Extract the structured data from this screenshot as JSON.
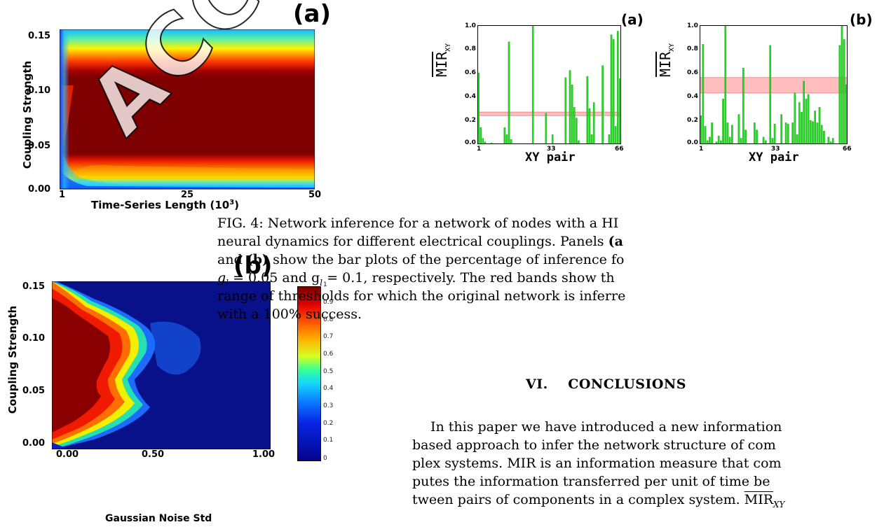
{
  "figure3": {
    "panel_a": {
      "letter": "(a)",
      "ylabel": "Coupling Strength",
      "xlabel": "Time-Series Length (10$^3$)",
      "xlabel_text": "Time-Series Length (10",
      "xlabel_sup": "3",
      "xlabel_tail": ")",
      "xticks": [
        "1",
        "25",
        "50"
      ],
      "yticks": [
        "0.00",
        "0.05",
        "0.10",
        "0.15"
      ]
    },
    "panel_b": {
      "letter": "(b)",
      "ylabel": "Coupling Strength",
      "xlabel": "Gaussian Noise Std",
      "xticks": [
        "0.00",
        "0.50",
        "1.00"
      ],
      "yticks": [
        "0.00",
        "0.05",
        "0.10",
        "0.15"
      ]
    },
    "colorbar": {
      "ticks": [
        "1",
        "0.9",
        "0.8",
        "0.7",
        "0.6",
        "0.5",
        "0.4",
        "0.3",
        "0.2",
        "0.1",
        "0"
      ]
    }
  },
  "figure4": {
    "panel_a": {
      "letter": "(a)",
      "ylabel": "MIR",
      "ylabel_sub": "XY",
      "xlabel": "XY pair",
      "xticks": [
        "1",
        "33",
        "66"
      ],
      "yticks": [
        "0.0",
        "0.2",
        "0.4",
        "0.6",
        "0.8",
        "1.0"
      ],
      "band": [
        0.24,
        0.27
      ]
    },
    "panel_b": {
      "letter": "(b)",
      "ylabel": "MIR",
      "ylabel_sub": "XY",
      "xlabel": "XY pair",
      "xticks": [
        "1",
        "33",
        "66"
      ],
      "yticks": [
        "0.0",
        "0.2",
        "0.4",
        "0.6",
        "0.8",
        "1.0"
      ],
      "band": [
        0.43,
        0.56
      ]
    },
    "caption_lines": [
      "FIG. 4: Network inference for a network of nodes with a HI",
      "neural dynamics for different electrical couplings. Panels (a",
      "and (b) show the bar plots of the percentage of inference fo",
      "g_l = 0.05 and g_l = 0.1, respectively. The red bands show th",
      "range of thresholds for which the original network is inferre",
      "with a 100% success."
    ],
    "caption": {
      "l1": "FIG. 4: Network inference for a network of nodes with a HI",
      "l2a": "neural dynamics for different electrical couplings. Panels ",
      "l2b": "(a",
      "l3a": "and ",
      "l3b": "(b)",
      "l3c": " show the bar plots of the percentage of inference fo",
      "l4": "= 0.05 and g",
      "l4b": "= 0.1, respectively. The red bands show th",
      "l5": "range of thresholds for which the original network is inferre",
      "l6": "with a 100% success."
    }
  },
  "section": {
    "number": "VI.",
    "title": "CONCLUSIONS"
  },
  "body": {
    "l1": "In this paper we have introduced a new information",
    "l2": "based approach to infer the network structure of com",
    "l3": "plex systems. MIR is an information measure that com",
    "l4": "putes the information transferred per unit of time be",
    "l5": "tween pairs of components in a complex system.",
    "l5_term": "MIR",
    "l5_sub": "XY"
  },
  "watermark": "ACCEPTED MANUSCRIPT",
  "chart_data": [
    {
      "type": "bar",
      "title": "(a)",
      "xlabel": "XY pair",
      "ylabel": "MIR_XY",
      "x_range": [
        1,
        66
      ],
      "ylim": [
        0,
        1.0
      ],
      "threshold_band": [
        0.24,
        0.27
      ],
      "values": [
        0.6,
        0.14,
        0.05,
        0.02,
        0.0,
        0.0,
        0.01,
        0.0,
        0.0,
        0.0,
        0.0,
        0.0,
        0.14,
        0.08,
        0.86,
        0.04,
        0.0,
        0.0,
        0.0,
        0.0,
        0.0,
        0.0,
        0.0,
        0.0,
        0.0,
        1.0,
        0.0,
        0.0,
        0.0,
        0.0,
        0.0,
        0.26,
        0.0,
        0.0,
        0.08,
        0.0,
        0.0,
        0.0,
        0.0,
        0.0,
        0.56,
        0.0,
        0.62,
        0.5,
        0.31,
        0.22,
        0.03,
        0.0,
        0.0,
        0.0,
        0.57,
        0.3,
        0.08,
        0.35,
        0.0,
        0.0,
        0.0,
        0.66,
        0.0,
        0.0,
        0.08,
        0.92,
        0.88,
        0.15,
        0.95,
        0.55
      ]
    },
    {
      "type": "bar",
      "title": "(b)",
      "xlabel": "XY pair",
      "ylabel": "MIR_XY",
      "x_range": [
        1,
        66
      ],
      "ylim": [
        0,
        1.0
      ],
      "threshold_band": [
        0.43,
        0.56
      ],
      "values": [
        0.24,
        0.84,
        0.15,
        0.03,
        0.06,
        0.18,
        0.0,
        0.02,
        0.07,
        0.03,
        0.38,
        1.0,
        0.18,
        0.06,
        0.16,
        0.0,
        0.0,
        0.25,
        0.05,
        0.64,
        0.12,
        0.0,
        0.0,
        0.0,
        0.18,
        0.12,
        0.0,
        0.0,
        0.06,
        0.03,
        0.0,
        0.83,
        0.05,
        0.17,
        0.0,
        0.0,
        0.25,
        0.0,
        0.18,
        0.17,
        0.0,
        0.18,
        0.43,
        0.08,
        0.35,
        0.27,
        0.53,
        0.38,
        0.42,
        0.2,
        0.19,
        0.28,
        0.18,
        0.31,
        0.16,
        0.11,
        0.0,
        0.06,
        0.02,
        0.05,
        0.0,
        0.0,
        0.83,
        1.0,
        0.88,
        0.5
      ]
    }
  ]
}
